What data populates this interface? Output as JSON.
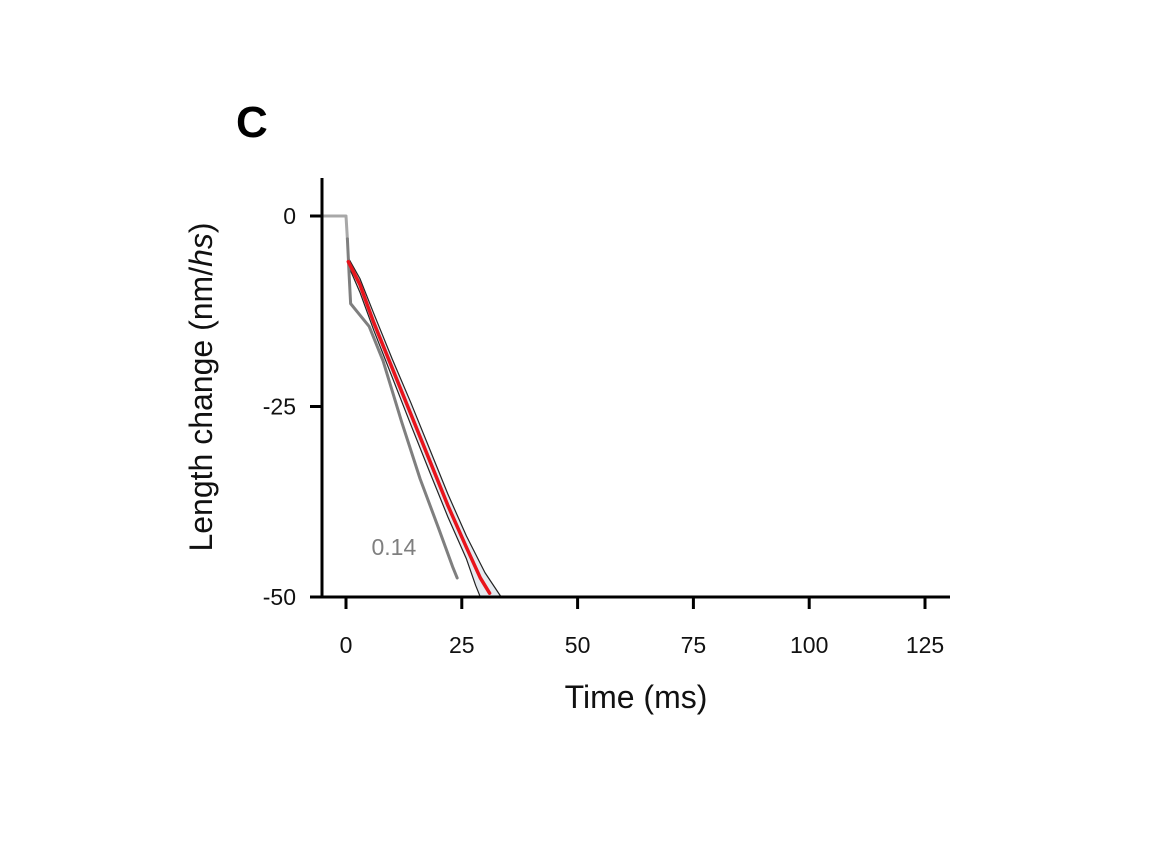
{
  "panel_label": "C",
  "chart_data": {
    "type": "line",
    "title": "",
    "xlabel": "Time (ms)",
    "ylabel_parts": [
      "Length change (nm/",
      "hs",
      ")"
    ],
    "xlim": [
      -5,
      130
    ],
    "ylim": [
      -50,
      5
    ],
    "x_ticks": [
      0,
      25,
      50,
      75,
      100,
      125
    ],
    "x_tick_labels": [
      "0",
      "25",
      "50",
      "75",
      "100",
      "125"
    ],
    "y_ticks": [
      0,
      -25,
      -50
    ],
    "y_tick_labels": [
      "0",
      "-25",
      "-50"
    ],
    "colors": {
      "grey_trace": "#7f7f7f",
      "red_trace": "#e8141c",
      "band_fill": "#e6eaf0",
      "band_edge": "#222222",
      "axis": "#000000"
    },
    "series": [
      {
        "name": "baseline",
        "color": "#a8a8a8",
        "x": [
          -5,
          -4,
          -2,
          0,
          0.3
        ],
        "y": [
          0,
          0,
          0,
          0,
          -3
        ]
      },
      {
        "name": "0.14",
        "color": "#7f7f7f",
        "x": [
          0.3,
          0.7,
          1,
          3,
          5,
          8,
          12,
          16,
          20,
          23,
          24
        ],
        "y": [
          -3,
          -8,
          -11.5,
          -13,
          -14.5,
          -19,
          -27,
          -34.5,
          -41,
          -46,
          -47.5
        ]
      },
      {
        "name": "red",
        "color": "#e8141c",
        "x": [
          0.5,
          3,
          6,
          10,
          14,
          18,
          22,
          26,
          29,
          31
        ],
        "y": [
          -6,
          -9,
          -14,
          -20,
          -26,
          -32,
          -38,
          -43.5,
          -47.5,
          -49.5
        ]
      }
    ],
    "band": {
      "upper": {
        "x": [
          0.5,
          3,
          6,
          10,
          14,
          18,
          22,
          26,
          30,
          33.5
        ],
        "y": [
          -5.5,
          -8.2,
          -12.8,
          -18.8,
          -24.5,
          -30.5,
          -36.5,
          -42,
          -46.8,
          -50
        ]
      },
      "lower": {
        "x": [
          0.5,
          3,
          6,
          10,
          14,
          18,
          22,
          26,
          28,
          29
        ],
        "y": [
          -6.5,
          -10,
          -15,
          -21.2,
          -27.4,
          -33.5,
          -39.5,
          -45,
          -48.5,
          -50
        ]
      }
    },
    "annotations": [
      {
        "text": "0.14",
        "x": 5.5,
        "y": -44.5,
        "color": "#7f7f7f"
      }
    ]
  }
}
